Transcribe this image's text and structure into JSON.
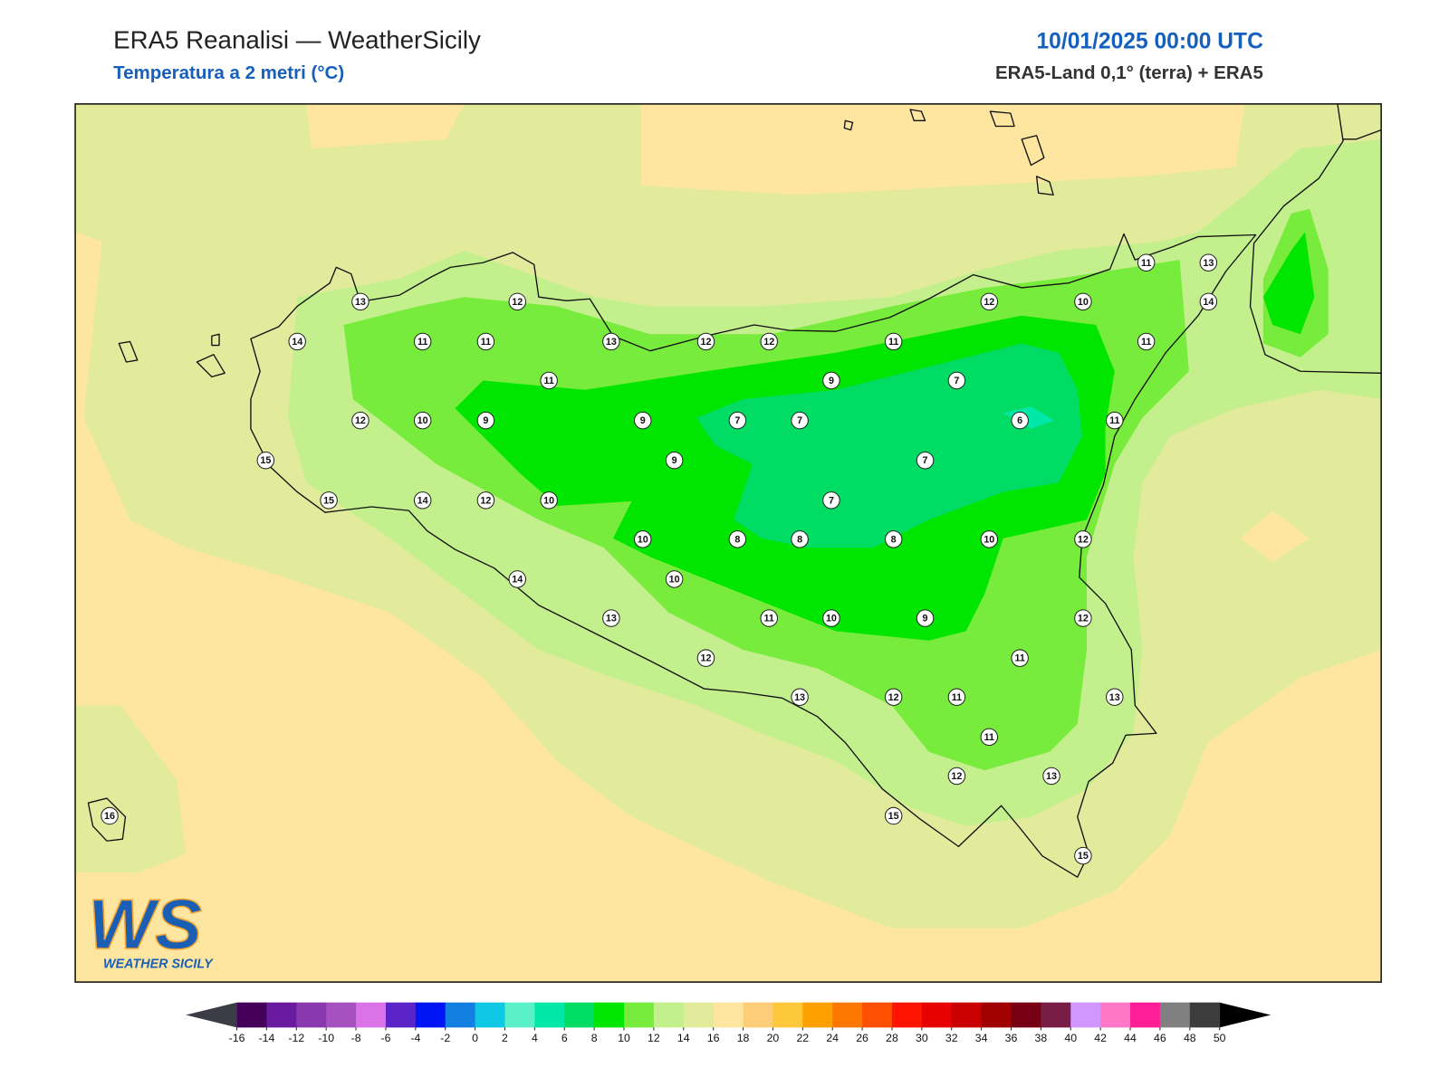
{
  "header": {
    "title": "ERA5 Reanalisi — WeatherSicily",
    "subtitle": "Temperatura a 2 metri (°C)",
    "datetime": "10/01/2025 00:00 UTC",
    "source": "ERA5-Land 0,1° (terra) + ERA5"
  },
  "station_values": [
    13,
    12,
    14,
    11,
    11,
    13,
    12,
    12,
    11,
    12,
    10,
    11,
    13,
    14,
    11,
    11,
    9,
    7,
    12,
    10,
    9,
    9,
    7,
    7,
    6,
    11,
    15,
    9,
    7,
    15,
    14,
    12,
    10,
    7,
    10,
    8,
    8,
    8,
    10,
    12,
    14,
    10,
    13,
    11,
    10,
    9,
    12,
    12,
    11,
    13,
    12,
    11,
    13,
    11,
    12,
    13,
    15,
    15,
    16
  ],
  "colorbar": {
    "ticks": [
      -16,
      -14,
      -12,
      -10,
      -8,
      -6,
      -4,
      -2,
      0,
      2,
      4,
      6,
      8,
      10,
      12,
      14,
      16,
      18,
      20,
      22,
      24,
      26,
      28,
      30,
      32,
      34,
      36,
      38,
      40,
      42,
      44,
      46,
      48,
      50
    ],
    "colors": [
      "#45005a",
      "#6a1a9e",
      "#8a38ad",
      "#a552c0",
      "#dc72e8",
      "#5b24c8",
      "#0015f5",
      "#137fe0",
      "#0fc8e3",
      "#5cf0c8",
      "#00e8a8",
      "#00dc64",
      "#00e600",
      "#78ec3c",
      "#c3f08c",
      "#e1eb9b",
      "#fee6a0",
      "#fdcd78",
      "#fec83c",
      "#fea000",
      "#fe7800",
      "#fe5000",
      "#fe1400",
      "#e60000",
      "#c80000",
      "#a00000",
      "#780014",
      "#781e46",
      "#d296ff",
      "#ff78c8",
      "#ff1e96",
      "#808080",
      "#3c3c3c"
    ],
    "under_color": "#3c3c46",
    "over_color": "#000000"
  },
  "logo": {
    "mark": "WS",
    "text": "WEATHER SICILY"
  }
}
